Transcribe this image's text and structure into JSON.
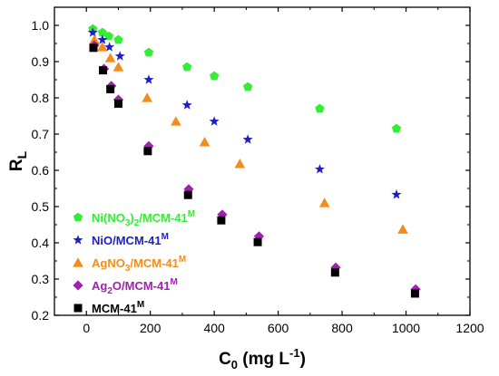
{
  "chart_data": {
    "type": "scatter",
    "xlabel": {
      "main": "C",
      "sub": "0",
      "rest": " (mg L",
      "sup": "-1",
      "end": ")"
    },
    "ylabel": {
      "main": "R",
      "sub": "L"
    },
    "xlim": [
      -100,
      1200
    ],
    "ylim": [
      0.2,
      1.05
    ],
    "xticks": [
      "0",
      "200",
      "400",
      "600",
      "800",
      "1000",
      "1200"
    ],
    "yticks": [
      "0.2",
      "0.3",
      "0.4",
      "0.5",
      "0.6",
      "0.7",
      "0.8",
      "0.9",
      "1.0"
    ],
    "legend_position": "bottom-left",
    "series": [
      {
        "name": "Ni(NO3)2/MCM-41M",
        "label_parts": [
          "Ni(NO",
          "3",
          ")",
          "2",
          "/MCM-41",
          "M"
        ],
        "marker": "pentagon",
        "color": "#33ee33",
        "points": [
          [
            20,
            0.99
          ],
          [
            50,
            0.98
          ],
          [
            70,
            0.97
          ],
          [
            100,
            0.96
          ],
          [
            195,
            0.925
          ],
          [
            315,
            0.885
          ],
          [
            400,
            0.86
          ],
          [
            505,
            0.83
          ],
          [
            730,
            0.77
          ],
          [
            970,
            0.715
          ]
        ]
      },
      {
        "name": "NiO/MCM-41M",
        "label_parts": [
          "NiO/MCM-41",
          "M"
        ],
        "marker": "star",
        "color": "#1f1fbf",
        "points": [
          [
            20,
            0.98
          ],
          [
            50,
            0.96
          ],
          [
            72,
            0.94
          ],
          [
            105,
            0.915
          ],
          [
            195,
            0.85
          ],
          [
            315,
            0.78
          ],
          [
            400,
            0.735
          ],
          [
            505,
            0.685
          ],
          [
            730,
            0.603
          ],
          [
            970,
            0.533
          ]
        ]
      },
      {
        "name": "AgNO3/MCM-41M",
        "label_parts": [
          "AgNO",
          "3",
          "/MCM-41",
          "M"
        ],
        "marker": "triangle",
        "color": "#f28c1c",
        "points": [
          [
            25,
            0.96
          ],
          [
            50,
            0.94
          ],
          [
            75,
            0.91
          ],
          [
            100,
            0.885
          ],
          [
            190,
            0.8
          ],
          [
            280,
            0.735
          ],
          [
            370,
            0.678
          ],
          [
            480,
            0.618
          ],
          [
            745,
            0.51
          ],
          [
            990,
            0.437
          ]
        ]
      },
      {
        "name": "Ag2O/MCM-41M",
        "label_parts": [
          "Ag",
          "2",
          "O/MCM-41",
          "M"
        ],
        "marker": "diamond",
        "color": "#a020b0",
        "points": [
          [
            25,
            0.945
          ],
          [
            55,
            0.88
          ],
          [
            78,
            0.833
          ],
          [
            100,
            0.795
          ],
          [
            195,
            0.667
          ],
          [
            320,
            0.548
          ],
          [
            425,
            0.478
          ],
          [
            540,
            0.418
          ],
          [
            780,
            0.332
          ],
          [
            1030,
            0.272
          ]
        ]
      },
      {
        "name": "MCM-41M",
        "label_parts": [
          "MCM-41",
          "M"
        ],
        "marker": "square",
        "color": "#000000",
        "points": [
          [
            22,
            0.938
          ],
          [
            52,
            0.876
          ],
          [
            75,
            0.824
          ],
          [
            100,
            0.784
          ],
          [
            192,
            0.653
          ],
          [
            318,
            0.532
          ],
          [
            422,
            0.462
          ],
          [
            536,
            0.402
          ],
          [
            778,
            0.318
          ],
          [
            1028,
            0.26
          ]
        ]
      }
    ]
  }
}
